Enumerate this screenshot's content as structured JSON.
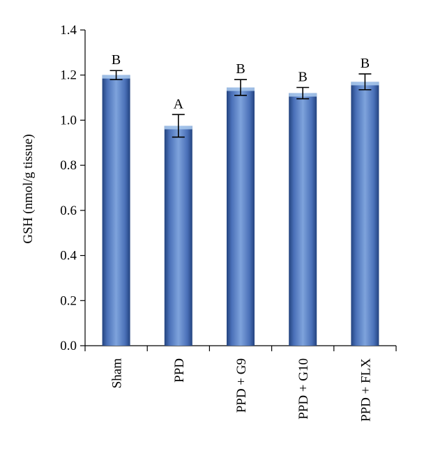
{
  "chart_data": {
    "type": "bar",
    "categories": [
      "Sham",
      "PPD",
      "PPD + G9",
      "PPD + G10",
      "PPD + FLX"
    ],
    "values": [
      1.2,
      0.975,
      1.145,
      1.12,
      1.17
    ],
    "errors": [
      0.02,
      0.05,
      0.035,
      0.025,
      0.035
    ],
    "significance_labels": [
      "B",
      "A",
      "B",
      "B",
      "B"
    ],
    "title": "",
    "xlabel": "",
    "ylabel": "GSH (nmol/g tissue)",
    "ylim": [
      0.0,
      1.4
    ],
    "yticks": [
      0.0,
      0.2,
      0.4,
      0.6,
      0.8,
      1.0,
      1.2,
      1.4
    ],
    "ytick_labels": [
      "0.0",
      "0.2",
      "0.4",
      "0.6",
      "0.8",
      "1.0",
      "1.2",
      "1.4"
    ],
    "grid": false,
    "colors": {
      "bar_main": "#4a70b8",
      "bar_light": "#7ea3dc",
      "bar_dark": "#23437f",
      "bar_cap": "#a9c8ec"
    }
  }
}
